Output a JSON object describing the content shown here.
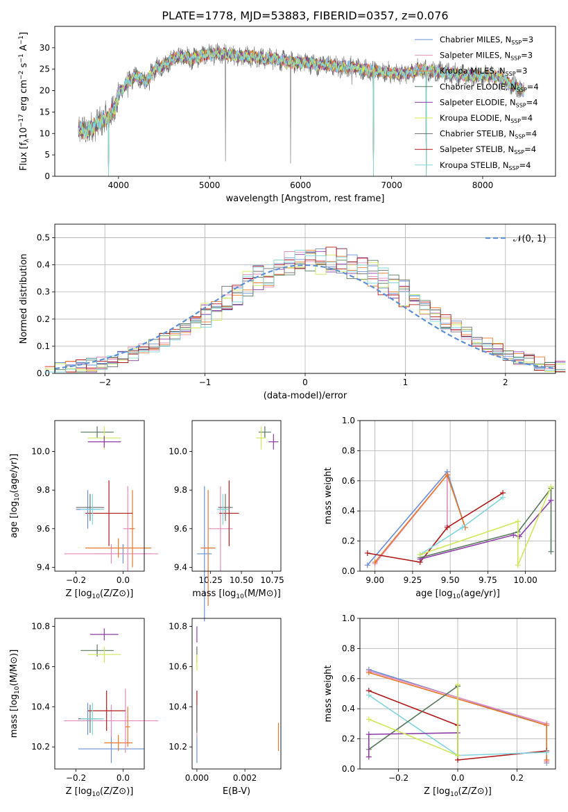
{
  "title": "PLATE=1778, MJD=53883, FIBERID=0357, z=0.076",
  "colors": {
    "chabrier_miles": "#6a8fd8",
    "salpeter_miles": "#e48bbb",
    "kroupa_miles": "#e8782a",
    "chabrier_elodie": "#55785a",
    "salpeter_elodie": "#8e3ca8",
    "kroupa_elodie": "#cfe85a",
    "chabrier_stelib": "#6e6e6e",
    "salpeter_stelib": "#b01818",
    "kroupa_stelib": "#7fd6e0",
    "gaussian": "#5b8fd6"
  },
  "chart_data": [
    {
      "id": "spectrum",
      "type": "line",
      "xlabel": "wavelength [Angstrom, rest frame]",
      "ylabel": "Flux [f_λ10^-17 erg cm^-2 s^-1 A^-1]",
      "xlim": [
        3300,
        8800
      ],
      "ylim": [
        0,
        35
      ],
      "xticks": [
        "4000",
        "5000",
        "6000",
        "7000",
        "8000"
      ],
      "yticks": [
        "0",
        "5",
        "10",
        "15",
        "20",
        "25",
        "30"
      ],
      "legend": "top-right",
      "series": [
        {
          "key": "chabrier_miles",
          "name": "Chabrier MILES, N",
          "sub": "SSP",
          "suffix": "=3"
        },
        {
          "key": "salpeter_miles",
          "name": "Salpeter MILES, N",
          "sub": "SSP",
          "suffix": "=3"
        },
        {
          "key": "kroupa_miles",
          "name": "Kroupa MILES, N",
          "sub": "SSP",
          "suffix": "=3"
        },
        {
          "key": "chabrier_elodie",
          "name": "Chabrier ELODIE, N",
          "sub": "SSP",
          "suffix": "=4"
        },
        {
          "key": "salpeter_elodie",
          "name": "Salpeter ELODIE, N",
          "sub": "SSP",
          "suffix": "=4"
        },
        {
          "key": "kroupa_elodie",
          "name": "Kroupa ELODIE, N",
          "sub": "SSP",
          "suffix": "=4"
        },
        {
          "key": "chabrier_stelib",
          "name": "Chabrier STELIB, N",
          "sub": "SSP",
          "suffix": "=4"
        },
        {
          "key": "salpeter_stelib",
          "name": "Salpeter STELIB, N",
          "sub": "SSP",
          "suffix": "=4"
        },
        {
          "key": "kroupa_stelib",
          "name": "Kroupa STELIB, N",
          "sub": "SSP",
          "suffix": "=4"
        }
      ],
      "continuum": [
        [
          3560,
          11
        ],
        [
          3650,
          10.5
        ],
        [
          3750,
          12
        ],
        [
          3850,
          13.5
        ],
        [
          3900,
          14
        ],
        [
          3960,
          16
        ],
        [
          4000,
          19
        ],
        [
          4100,
          22
        ],
        [
          4200,
          23.5
        ],
        [
          4300,
          22
        ],
        [
          4400,
          25
        ],
        [
          4500,
          26
        ],
        [
          4600,
          27.5
        ],
        [
          4700,
          28
        ],
        [
          4800,
          27.5
        ],
        [
          4900,
          28
        ],
        [
          5000,
          28.5
        ],
        [
          5100,
          28.5
        ],
        [
          5200,
          28.5
        ],
        [
          5300,
          28
        ],
        [
          5400,
          28
        ],
        [
          5500,
          28
        ],
        [
          5600,
          27.5
        ],
        [
          5700,
          27.5
        ],
        [
          5800,
          27
        ],
        [
          5900,
          26.5
        ],
        [
          6000,
          26.5
        ],
        [
          6100,
          26.5
        ],
        [
          6200,
          26
        ],
        [
          6300,
          26
        ],
        [
          6400,
          25.5
        ],
        [
          6500,
          25.5
        ],
        [
          6600,
          25.5
        ],
        [
          6700,
          25
        ],
        [
          6800,
          24.5
        ],
        [
          6900,
          24.5
        ],
        [
          7000,
          24
        ],
        [
          7100,
          24
        ],
        [
          7200,
          24
        ],
        [
          7300,
          25
        ],
        [
          7400,
          24.5
        ],
        [
          7500,
          24.5
        ],
        [
          7600,
          24
        ],
        [
          7700,
          24
        ],
        [
          7800,
          23.5
        ],
        [
          7900,
          23.5
        ],
        [
          8000,
          23.5
        ],
        [
          8100,
          23.5
        ],
        [
          8200,
          23
        ],
        [
          8300,
          21.5
        ],
        [
          8400,
          20.5
        ],
        [
          8450,
          20
        ]
      ],
      "dips": [
        [
          3890,
          0
        ],
        [
          3934,
          19
        ],
        [
          4102,
          18
        ],
        [
          4226,
          21
        ],
        [
          4340,
          20
        ],
        [
          5175,
          3.5
        ],
        [
          5890,
          3
        ],
        [
          6563,
          21
        ],
        [
          6800,
          0
        ],
        [
          7380,
          0
        ],
        [
          8190,
          20
        ]
      ]
    },
    {
      "id": "residuals",
      "type": "line",
      "xlabel": "(data-model)/error",
      "ylabel": "Normed distribution",
      "xlim": [
        -2.5,
        2.5
      ],
      "ylim": [
        0,
        0.55
      ],
      "xticks": [
        "−2",
        "−1",
        "0",
        "1",
        "2"
      ],
      "yticks": [
        "0.0",
        "0.1",
        "0.2",
        "0.3",
        "0.4",
        "0.5"
      ],
      "legend": "top-right",
      "legend_label": "𝒩(0, 1)",
      "grid": true
    },
    {
      "id": "z_age",
      "type": "scatter",
      "xlabel": "Z [log10(Z/Z⊙)]",
      "ylabel": "age [log10(age/yr)]",
      "xlim": [
        -0.29,
        0.09
      ],
      "ylim": [
        9.38,
        10.16
      ],
      "xticks": [
        "−0.2",
        "0.0"
      ],
      "yticks": [
        "9.4",
        "9.6",
        "9.8",
        "10.0"
      ],
      "points": [
        {
          "key": "chabrier_miles",
          "x": 0.0,
          "xerr": 0.12,
          "y": 9.47,
          "yerr": 0.05
        },
        {
          "key": "salpeter_miles",
          "x": -0.05,
          "xerr": 0.2,
          "y": 9.47,
          "yerr": 0.05
        },
        {
          "key": "kroupa_miles",
          "x": -0.02,
          "xerr": 0.14,
          "y": 9.5,
          "yerr": 0.05
        },
        {
          "key": "salpeter_miles",
          "x": 0.02,
          "xerr": 0.02,
          "y": 9.6,
          "yerr": 0.22
        },
        {
          "key": "kroupa_miles",
          "x": 0.04,
          "xerr": 0.01,
          "y": 9.6,
          "yerr": 0.2
        },
        {
          "key": "salpeter_stelib",
          "x": -0.06,
          "xerr": 0.1,
          "y": 9.68,
          "yerr": 0.17
        },
        {
          "key": "chabrier_miles",
          "x": -0.15,
          "xerr": 0.05,
          "y": 9.7,
          "yerr": 0.1
        },
        {
          "key": "chabrier_stelib",
          "x": -0.14,
          "xerr": 0.06,
          "y": 9.71,
          "yerr": 0.07
        },
        {
          "key": "kroupa_stelib",
          "x": -0.13,
          "xerr": 0.05,
          "y": 9.7,
          "yerr": 0.08
        },
        {
          "key": "chabrier_elodie",
          "x": -0.11,
          "xerr": 0.07,
          "y": 10.1,
          "yerr": 0.03
        },
        {
          "key": "kroupa_elodie",
          "x": -0.08,
          "xerr": 0.07,
          "y": 10.07,
          "yerr": 0.06
        },
        {
          "key": "salpeter_elodie",
          "x": -0.08,
          "xerr": 0.07,
          "y": 10.05,
          "yerr": 0.03
        }
      ]
    },
    {
      "id": "mass_age",
      "type": "scatter",
      "xlabel": "mass [log10(M/M⊙)]",
      "ylabel": "",
      "xlim": [
        10.1,
        10.82
      ],
      "ylim": [
        9.38,
        10.16
      ],
      "xticks": [
        "10.25",
        "10.50",
        "10.75"
      ],
      "yticks": [
        "9.4",
        "9.6",
        "9.8",
        "10.0"
      ],
      "points": [
        {
          "key": "chabrier_miles",
          "x": 10.2,
          "xerr": 0.06,
          "y": 9.47,
          "yerr": 0.35
        },
        {
          "key": "kroupa_miles",
          "x": 10.23,
          "xerr": 0.06,
          "y": 9.5,
          "yerr": 0.3
        },
        {
          "key": "salpeter_miles",
          "x": 10.33,
          "xerr": 0.1,
          "y": 9.6,
          "yerr": 0.22
        },
        {
          "key": "salpeter_stelib",
          "x": 10.4,
          "xerr": 0.08,
          "y": 9.68,
          "yerr": 0.17
        },
        {
          "key": "chabrier_stelib",
          "x": 10.37,
          "xerr": 0.06,
          "y": 9.71,
          "yerr": 0.07
        },
        {
          "key": "kroupa_stelib",
          "x": 10.35,
          "xerr": 0.05,
          "y": 9.7,
          "yerr": 0.08
        },
        {
          "key": "chabrier_elodie",
          "x": 10.69,
          "xerr": 0.05,
          "y": 10.1,
          "yerr": 0.03
        },
        {
          "key": "kroupa_elodie",
          "x": 10.66,
          "xerr": 0.04,
          "y": 10.07,
          "yerr": 0.06
        },
        {
          "key": "salpeter_elodie",
          "x": 10.76,
          "xerr": 0.04,
          "y": 10.05,
          "yerr": 0.04
        }
      ]
    },
    {
      "id": "weight_age",
      "type": "line",
      "xlabel": "age [log10(age/yr)]",
      "ylabel": "mass weight",
      "xlim": [
        8.9,
        10.2
      ],
      "ylim": [
        0.0,
        1.0
      ],
      "xticks": [
        "9.00",
        "9.25",
        "9.50",
        "9.75",
        "10.00"
      ],
      "yticks": [
        "0.0",
        "0.2",
        "0.4",
        "0.6",
        "0.8",
        "1.0"
      ],
      "grid": true,
      "series": [
        {
          "key": "chabrier_miles",
          "x": [
            8.95,
            9.48,
            9.6
          ],
          "y": [
            0.04,
            0.66,
            0.29
          ]
        },
        {
          "key": "salpeter_miles",
          "x": [
            9.0,
            9.48,
            9.48
          ],
          "y": [
            0.05,
            0.64,
            0.3
          ]
        },
        {
          "key": "kroupa_miles",
          "x": [
            9.0,
            9.48,
            9.6
          ],
          "y": [
            0.06,
            0.64,
            0.29
          ]
        },
        {
          "key": "salpeter_stelib",
          "x": [
            8.95,
            9.3,
            9.48,
            9.85
          ],
          "y": [
            0.12,
            0.06,
            0.29,
            0.52
          ]
        },
        {
          "key": "kroupa_stelib",
          "x": [
            9.3,
            9.58,
            9.85
          ],
          "y": [
            0.11,
            0.29,
            0.49
          ]
        },
        {
          "key": "chabrier_elodie",
          "x": [
            9.3,
            9.95,
            10.17,
            10.17
          ],
          "y": [
            0.09,
            0.26,
            0.55,
            0.13
          ]
        },
        {
          "key": "salpeter_elodie",
          "x": [
            9.3,
            9.92,
            9.96,
            10.17
          ],
          "y": [
            0.08,
            0.24,
            0.23,
            0.47
          ]
        },
        {
          "key": "kroupa_elodie",
          "x": [
            9.3,
            9.95,
            9.95,
            10.17
          ],
          "y": [
            0.11,
            0.33,
            0.04,
            0.56
          ]
        }
      ]
    },
    {
      "id": "z_mass",
      "type": "scatter",
      "xlabel": "Z [log10(Z/Z⊙)]",
      "ylabel": "mass [log10(M/M⊙)]",
      "xlim": [
        -0.29,
        0.09
      ],
      "ylim": [
        10.09,
        10.84
      ],
      "xticks": [
        "−0.2",
        "0.0"
      ],
      "yticks": [
        "10.2",
        "10.4",
        "10.6",
        "10.8"
      ],
      "points": [
        {
          "key": "chabrier_miles",
          "x": -0.05,
          "xerr": 0.14,
          "y": 10.19,
          "yerr": 0.07
        },
        {
          "key": "kroupa_miles",
          "x": -0.02,
          "xerr": 0.06,
          "y": 10.22,
          "yerr": 0.04
        },
        {
          "key": "salpeter_miles",
          "x": -0.05,
          "xerr": 0.2,
          "y": 10.33,
          "yerr": 0.08
        },
        {
          "key": "salpeter_miles",
          "x": 0.01,
          "xerr": 0.01,
          "y": 10.33,
          "yerr": 0.16
        },
        {
          "key": "kroupa_miles",
          "x": 0.02,
          "xerr": 0.01,
          "y": 10.3,
          "yerr": 0.1
        },
        {
          "key": "salpeter_stelib",
          "x": -0.07,
          "xerr": 0.08,
          "y": 10.38,
          "yerr": 0.1
        },
        {
          "key": "chabrier_miles",
          "x": -0.15,
          "xerr": 0.04,
          "y": 10.34,
          "yerr": 0.08
        },
        {
          "key": "chabrier_stelib",
          "x": -0.14,
          "xerr": 0.05,
          "y": 10.34,
          "yerr": 0.07
        },
        {
          "key": "kroupa_stelib",
          "x": -0.13,
          "xerr": 0.05,
          "y": 10.34,
          "yerr": 0.08
        },
        {
          "key": "chabrier_elodie",
          "x": -0.11,
          "xerr": 0.07,
          "y": 10.68,
          "yerr": 0.03
        },
        {
          "key": "kroupa_elodie",
          "x": -0.08,
          "xerr": 0.07,
          "y": 10.66,
          "yerr": 0.04
        },
        {
          "key": "salpeter_elodie",
          "x": -0.08,
          "xerr": 0.06,
          "y": 10.76,
          "yerr": 0.03
        }
      ]
    },
    {
      "id": "ebv_mass",
      "type": "scatter",
      "xlabel": "E(B-V)",
      "ylabel": "",
      "xlim": [
        -0.0002,
        0.0035
      ],
      "ylim": [
        10.09,
        10.84
      ],
      "xticks": [
        "0.000",
        "0.002"
      ],
      "yticks": [
        "10.2",
        "10.4",
        "10.6",
        "10.8"
      ],
      "points": [
        {
          "key": "chabrier_miles",
          "x": 0.0,
          "xerr": 0,
          "y": 10.19,
          "yerr": 0.07
        },
        {
          "key": "salpeter_miles",
          "x": 0.0,
          "xerr": 0,
          "y": 10.33,
          "yerr": 0.08
        },
        {
          "key": "salpeter_stelib",
          "x": 0.0,
          "xerr": 0,
          "y": 10.38,
          "yerr": 0.1
        },
        {
          "key": "chabrier_stelib",
          "x": 0.0,
          "xerr": 0,
          "y": 10.34,
          "yerr": 0.07
        },
        {
          "key": "chabrier_elodie",
          "x": 0.0,
          "xerr": 0,
          "y": 10.66,
          "yerr": 0.04
        },
        {
          "key": "kroupa_elodie",
          "x": 0.0,
          "xerr": 0,
          "y": 10.62,
          "yerr": 0.04
        },
        {
          "key": "salpeter_elodie",
          "x": 0.0,
          "xerr": 0,
          "y": 10.76,
          "yerr": 0.04
        },
        {
          "key": "kroupa_miles",
          "x": 0.0034,
          "xerr": 0,
          "y": 10.25,
          "yerr": 0.07
        }
      ]
    },
    {
      "id": "weight_z",
      "type": "line",
      "xlabel": "Z [log10(Z/Z⊙)]",
      "ylabel": "mass weight",
      "xlim": [
        -0.33,
        0.33
      ],
      "ylim": [
        0.0,
        1.0
      ],
      "xticks": [
        "−0.2",
        "0.0",
        "0.2"
      ],
      "yticks": [
        "0.0",
        "0.2",
        "0.4",
        "0.6",
        "0.8",
        "1.0"
      ],
      "grid": true,
      "series": [
        {
          "key": "chabrier_miles",
          "x": [
            -0.3,
            0.3,
            0.3
          ],
          "y": [
            0.66,
            0.29,
            0.04
          ]
        },
        {
          "key": "salpeter_miles",
          "x": [
            -0.3,
            0.3,
            0.3
          ],
          "y": [
            0.65,
            0.3,
            0.05
          ]
        },
        {
          "key": "kroupa_miles",
          "x": [
            -0.3,
            0.3,
            0.3
          ],
          "y": [
            0.64,
            0.29,
            0.06
          ]
        },
        {
          "key": "salpeter_stelib",
          "x": [
            -0.3,
            0.0,
            0.0,
            0.3
          ],
          "y": [
            0.52,
            0.29,
            0.06,
            0.12
          ]
        },
        {
          "key": "kroupa_stelib",
          "x": [
            -0.3,
            0.0,
            0.3
          ],
          "y": [
            0.49,
            0.09,
            0.11
          ]
        },
        {
          "key": "chabrier_elodie",
          "x": [
            -0.3,
            0.0,
            0.0
          ],
          "y": [
            0.13,
            0.55,
            0.09
          ]
        },
        {
          "key": "salpeter_elodie",
          "x": [
            -0.3,
            -0.3,
            0.0
          ],
          "y": [
            0.08,
            0.23,
            0.24
          ]
        },
        {
          "key": "kroupa_elodie",
          "x": [
            -0.3,
            0.0,
            0.0
          ],
          "y": [
            0.33,
            0.09,
            0.56
          ]
        }
      ]
    }
  ]
}
